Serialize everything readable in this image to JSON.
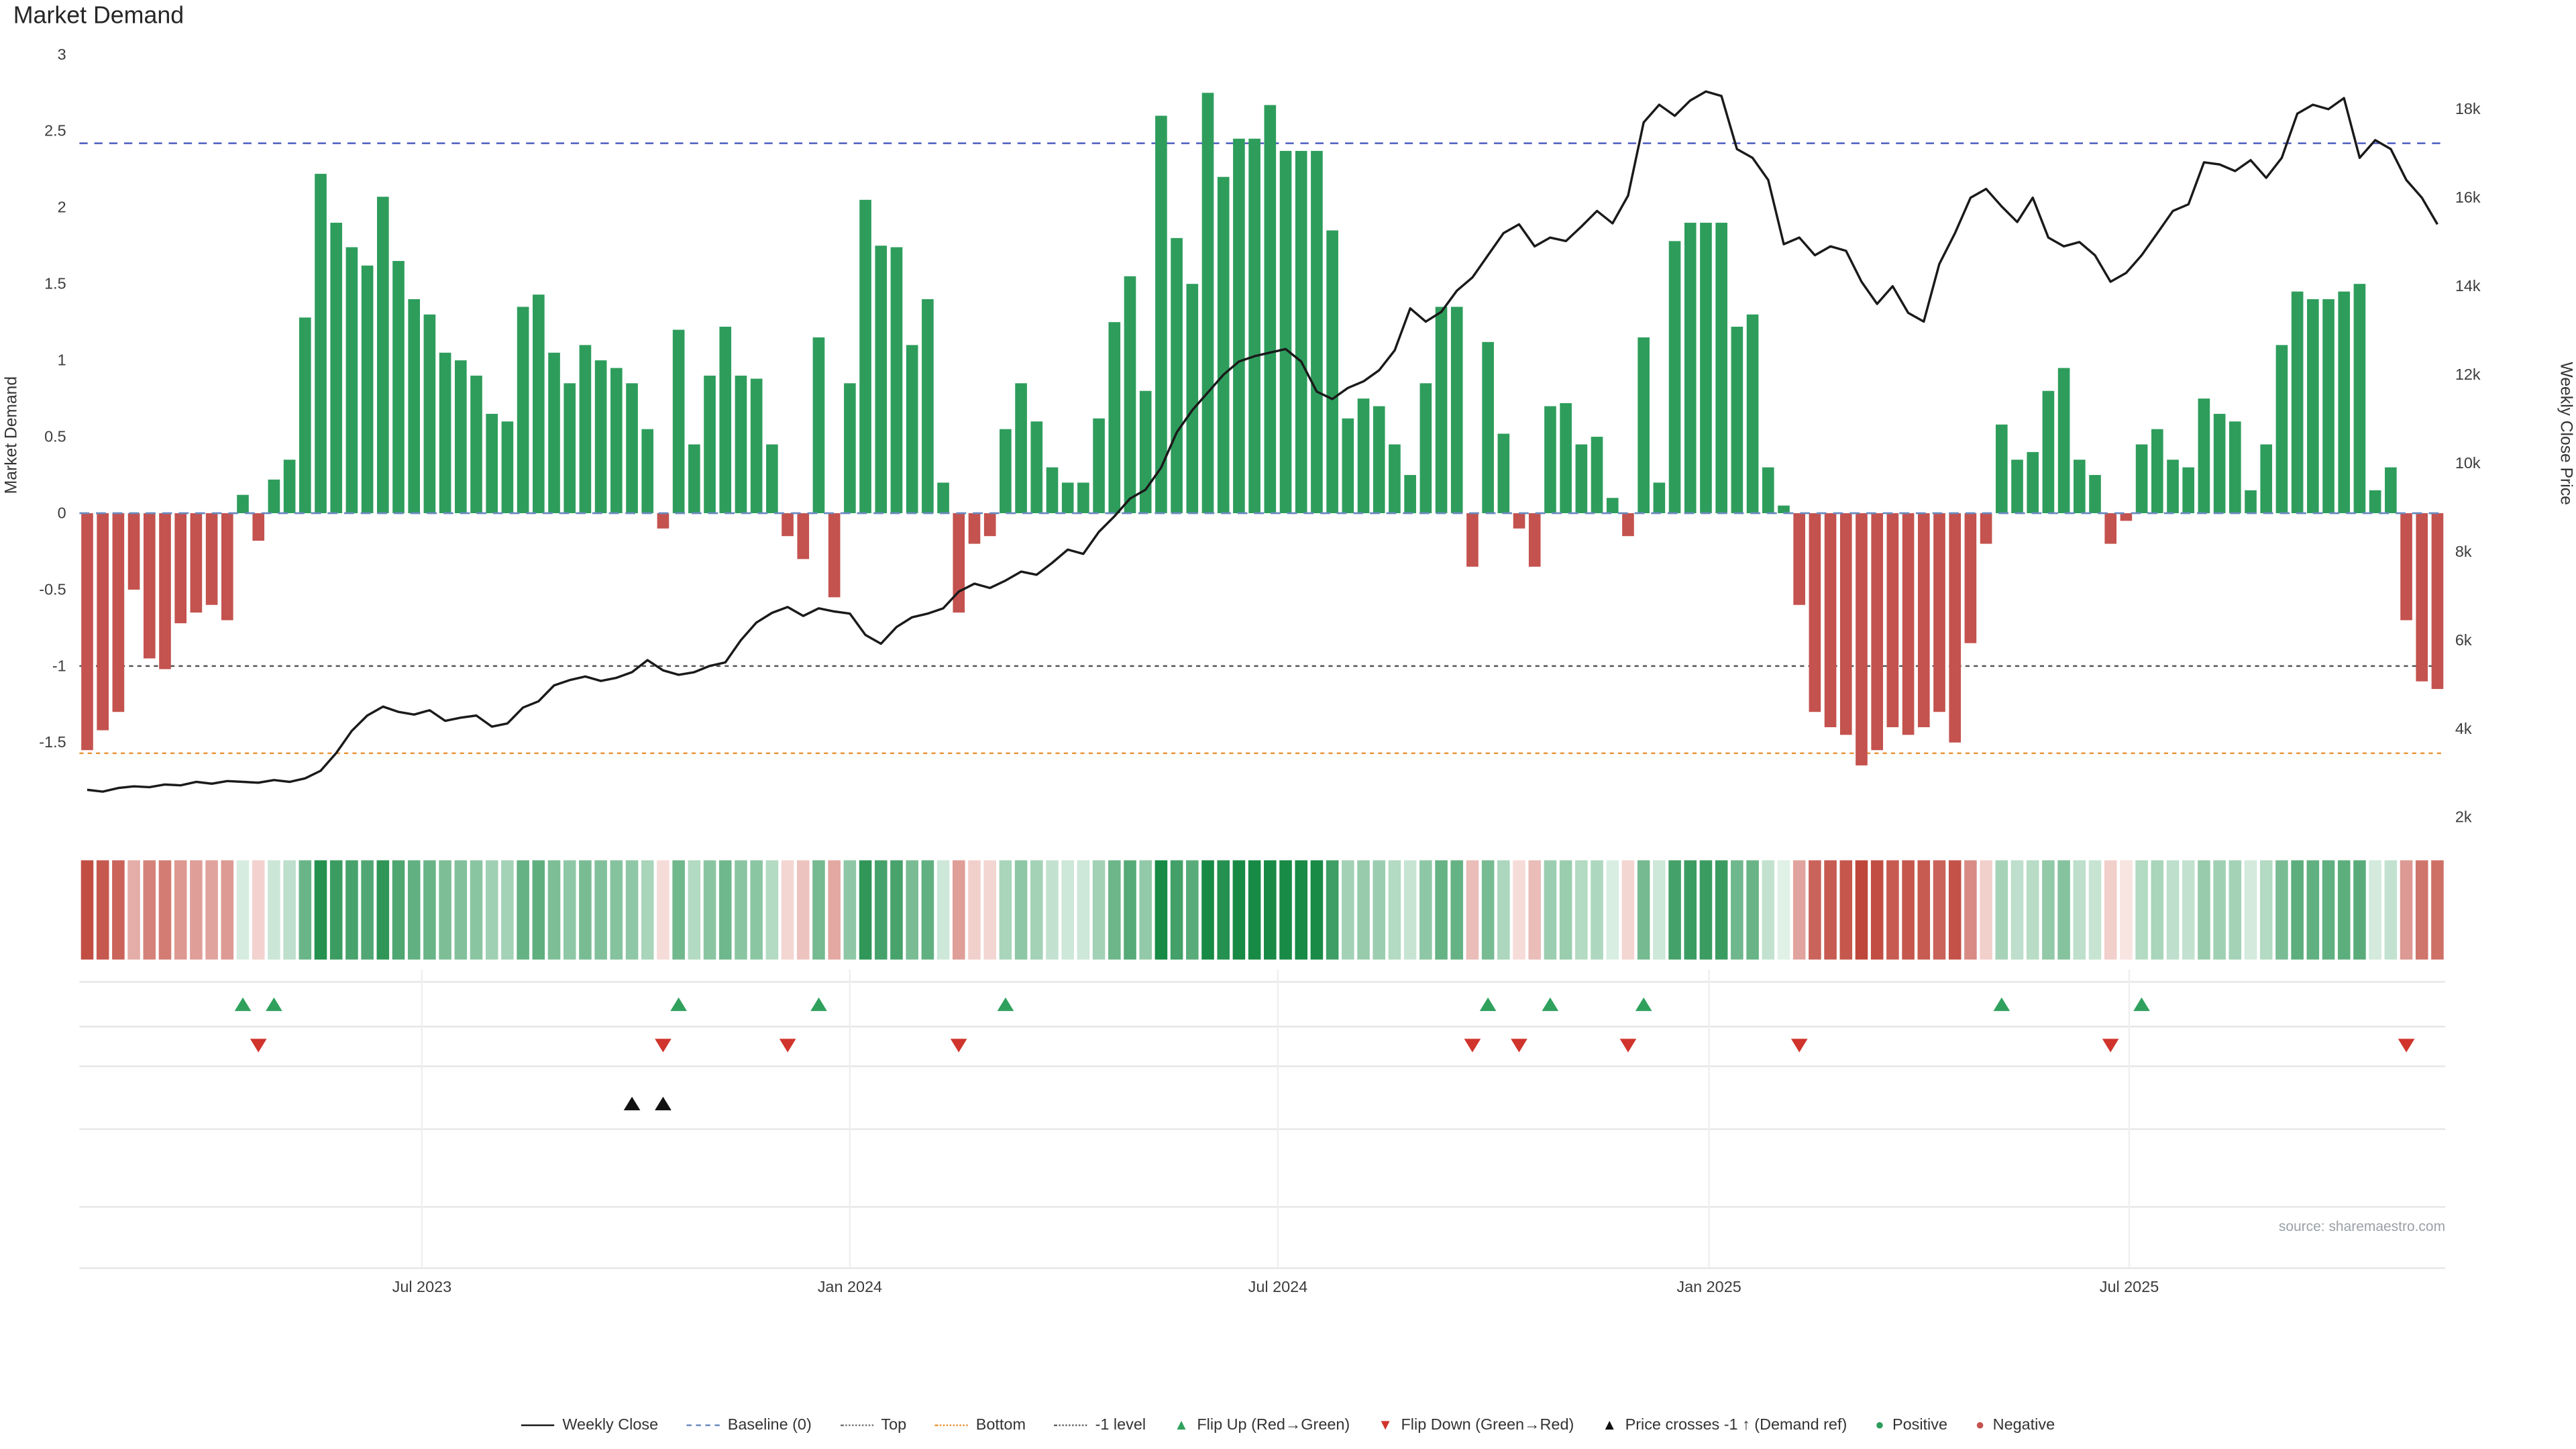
{
  "title": "Market Demand",
  "source": "source: sharemaestro.com",
  "colors": {
    "positive": "#2e9d5c",
    "negative": "#c4524e",
    "price_line": "#1a1a1a",
    "baseline": "#6b8abf",
    "top_line": "#4455bb",
    "bottom_line": "#e8953a",
    "minus1_line": "#555555",
    "flip_up": "#2fa15d",
    "flip_down": "#d0342c",
    "price_cross": "#111111",
    "heat_pos_lo": "#eaf6ef",
    "heat_pos_hi": "#178a45",
    "heat_neg_lo": "#fceeec",
    "heat_neg_hi": "#bb3a2e",
    "grid": "#e6e6e6"
  },
  "chart_data": {
    "type": "bar+line",
    "title": "Market Demand",
    "frequency": "weekly",
    "y_left": {
      "label": "Market Demand",
      "domain": [
        -2.02,
        3.05
      ],
      "ticks": [
        {
          "label": "3",
          "value": 3
        },
        {
          "label": "2.5",
          "value": 2.5
        },
        {
          "label": "2",
          "value": 2
        },
        {
          "label": "1.5",
          "value": 1.5
        },
        {
          "label": "1",
          "value": 1
        },
        {
          "label": "0.5",
          "value": 0.5
        },
        {
          "label": "0",
          "value": 0
        },
        {
          "label": "-0.5",
          "value": -0.5
        },
        {
          "label": "-1",
          "value": -1
        },
        {
          "label": "-1.5",
          "value": -1.5
        }
      ]
    },
    "y_right": {
      "label": "Weekly Close Price",
      "domain_k": [
        1.9,
        19.35
      ],
      "ticks": [
        {
          "label": "18k",
          "value_k": 18
        },
        {
          "label": "16k",
          "value_k": 16
        },
        {
          "label": "14k",
          "value_k": 14
        },
        {
          "label": "12k",
          "value_k": 12
        },
        {
          "label": "10k",
          "value_k": 10
        },
        {
          "label": "8k",
          "value_k": 8
        },
        {
          "label": "6k",
          "value_k": 6
        },
        {
          "label": "4k",
          "value_k": 4
        },
        {
          "label": "2k",
          "value_k": 2
        }
      ]
    },
    "x_ticks": [
      {
        "pos": 22,
        "label": "Jul 2023"
      },
      {
        "pos": 49.5,
        "label": "Jan 2024"
      },
      {
        "pos": 77,
        "label": "Jul 2024"
      },
      {
        "pos": 104.7,
        "label": "Jan 2025"
      },
      {
        "pos": 131.7,
        "label": "Jul 2025"
      }
    ],
    "reference_lines": {
      "baseline": 0,
      "top": 2.42,
      "bottom": -1.57,
      "minus1": -1
    },
    "series": [
      {
        "name": "Market Demand",
        "type": "bar",
        "axis": "left",
        "values": [
          -1.55,
          -1.42,
          -1.3,
          -0.5,
          -0.95,
          -1.02,
          -0.72,
          -0.65,
          -0.6,
          -0.7,
          0.12,
          -0.18,
          0.22,
          0.35,
          1.28,
          2.22,
          1.9,
          1.74,
          1.62,
          2.07,
          1.65,
          1.4,
          1.3,
          1.05,
          1.0,
          0.9,
          0.65,
          0.6,
          1.35,
          1.43,
          1.05,
          0.85,
          1.1,
          1.0,
          0.95,
          0.85,
          0.55,
          -0.1,
          1.2,
          0.45,
          0.9,
          1.22,
          0.9,
          0.88,
          0.45,
          -0.15,
          -0.3,
          1.15,
          -0.55,
          0.85,
          2.05,
          1.75,
          1.74,
          1.1,
          1.4,
          0.2,
          -0.65,
          -0.2,
          -0.15,
          0.55,
          0.85,
          0.6,
          0.3,
          0.2,
          0.2,
          0.62,
          1.25,
          1.55,
          0.8,
          2.6,
          1.8,
          1.5,
          2.75,
          2.2,
          2.45,
          2.45,
          2.67,
          2.37,
          2.37,
          2.37,
          1.85,
          0.62,
          0.75,
          0.7,
          0.45,
          0.25,
          0.85,
          1.35,
          1.35,
          -0.35,
          1.12,
          0.52,
          -0.1,
          -0.35,
          0.7,
          0.72,
          0.45,
          0.5,
          0.1,
          -0.15,
          1.15,
          0.2,
          1.78,
          1.9,
          1.9,
          1.9,
          1.22,
          1.3,
          0.3,
          0.05,
          -0.6,
          -1.3,
          -1.4,
          -1.45,
          -1.65,
          -1.55,
          -1.4,
          -1.45,
          -1.4,
          -1.3,
          -1.5,
          -0.85,
          -0.2,
          0.58,
          0.35,
          0.4,
          0.8,
          0.95,
          0.35,
          0.25,
          -0.2,
          -0.05,
          0.45,
          0.55,
          0.35,
          0.3,
          0.75,
          0.65,
          0.6,
          0.15,
          0.45,
          1.1,
          1.45,
          1.4,
          1.4,
          1.45,
          1.5,
          0.15,
          0.3,
          -0.7,
          -1.1,
          -1.15
        ]
      },
      {
        "name": "Weekly Close",
        "type": "line",
        "axis": "right",
        "values_k": [
          2.62,
          2.58,
          2.66,
          2.7,
          2.68,
          2.74,
          2.72,
          2.8,
          2.76,
          2.82,
          2.8,
          2.78,
          2.84,
          2.8,
          2.88,
          3.05,
          3.45,
          3.95,
          4.3,
          4.5,
          4.38,
          4.32,
          4.42,
          4.18,
          4.25,
          4.3,
          4.05,
          4.12,
          4.48,
          4.62,
          4.98,
          5.1,
          5.18,
          5.08,
          5.15,
          5.28,
          5.55,
          5.32,
          5.22,
          5.28,
          5.42,
          5.5,
          6.0,
          6.4,
          6.62,
          6.75,
          6.55,
          6.72,
          6.65,
          6.6,
          6.12,
          5.92,
          6.3,
          6.52,
          6.6,
          6.72,
          7.1,
          7.28,
          7.18,
          7.35,
          7.55,
          7.48,
          7.75,
          8.05,
          7.95,
          8.45,
          8.8,
          9.2,
          9.4,
          9.9,
          10.7,
          11.2,
          11.6,
          12.0,
          12.3,
          12.42,
          12.5,
          12.58,
          12.3,
          11.62,
          11.45,
          11.7,
          11.85,
          12.1,
          12.55,
          13.5,
          13.2,
          13.42,
          13.9,
          14.2,
          14.7,
          15.2,
          15.4,
          14.9,
          15.1,
          15.02,
          15.35,
          15.7,
          15.42,
          16.05,
          17.7,
          18.1,
          17.85,
          18.2,
          18.4,
          18.3,
          17.1,
          16.9,
          16.4,
          14.95,
          15.1,
          14.7,
          14.9,
          14.8,
          14.1,
          13.6,
          14.0,
          13.4,
          13.2,
          14.5,
          15.2,
          16.0,
          16.2,
          15.8,
          15.45,
          16.0,
          15.1,
          14.9,
          15.0,
          14.7,
          14.1,
          14.3,
          14.7,
          15.2,
          15.7,
          15.85,
          16.8,
          16.75,
          16.6,
          16.85,
          16.45,
          16.9,
          17.9,
          18.1,
          18.0,
          18.25,
          16.9,
          17.3,
          17.1,
          16.4,
          16.0,
          15.4
        ]
      }
    ],
    "markers": {
      "flip_up": {
        "label": "Flip Up (Red→Green)",
        "indices": [
          10,
          12,
          38,
          47,
          59,
          90,
          94,
          100,
          123,
          132
        ]
      },
      "flip_down": {
        "label": "Flip Down (Green→Red)",
        "indices": [
          11,
          37,
          45,
          56,
          89,
          92,
          99,
          110,
          130,
          149
        ]
      },
      "price_cross": {
        "label": "Price crosses -1 ↑ (Demand ref)",
        "indices": [
          35,
          37
        ]
      }
    }
  },
  "legend": {
    "items": [
      {
        "swatch": "line",
        "color": "#1a1a1a",
        "label": "Weekly Close"
      },
      {
        "swatch": "dashed",
        "color": "#6b8abf",
        "label": "Baseline (0)"
      },
      {
        "swatch": "dotted",
        "color": "#777777",
        "label": "Top"
      },
      {
        "swatch": "dotted",
        "color": "#e8953a",
        "label": "Bottom"
      },
      {
        "swatch": "dotted",
        "color": "#666666",
        "label": "-1 level"
      },
      {
        "swatch": "tri-up",
        "color": "#2fa15d",
        "label": "Flip Up (Red→Green)"
      },
      {
        "swatch": "tri-down",
        "color": "#d0342c",
        "label": "Flip Down (Green→Red)"
      },
      {
        "swatch": "tri-up",
        "color": "#111111",
        "label": "Price crosses -1 ↑ (Demand ref)"
      },
      {
        "swatch": "circle",
        "color": "#2e9d5c",
        "label": "Positive"
      },
      {
        "swatch": "circle",
        "color": "#c4524e",
        "label": "Negative"
      }
    ]
  }
}
